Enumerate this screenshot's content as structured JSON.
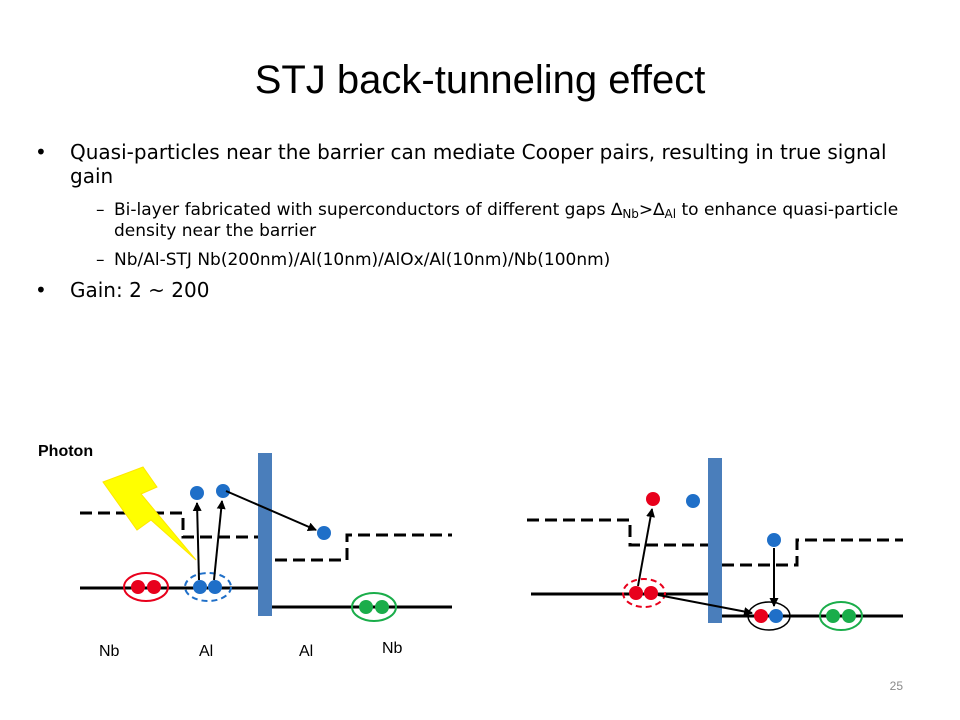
{
  "slide": {
    "title": "STJ back-tunneling effect",
    "bullets": {
      "b1": "Quasi-particles near the barrier can mediate Cooper pairs, resulting in true signal gain",
      "b1_sub1_pre": "Bi-layer fabricated with superconductors of different gaps ",
      "delta": "∆",
      "nb_sub": "Nb",
      "gt": ">",
      "al_sub": "Al",
      "b1_sub1_post": " to enhance quasi-particle density near the barrier",
      "b1_sub2": "Nb/Al-STJ   Nb(200nm)/Al(10nm)/AlOx/Al(10nm)/Nb(100nm)",
      "b2": "Gain: 2 ~ 200"
    },
    "diagram": {
      "photon_label": "Photon",
      "layer_labels": [
        "Nb",
        "Al",
        "Al",
        "Nb"
      ]
    },
    "page_number": "25",
    "colors": {
      "barrier": "#4a7ebb",
      "qp_dot": "#1f6fc8",
      "cooper_red": "#e8001c",
      "cooper_green": "#1aad4a",
      "photon": "#ffff00"
    }
  }
}
